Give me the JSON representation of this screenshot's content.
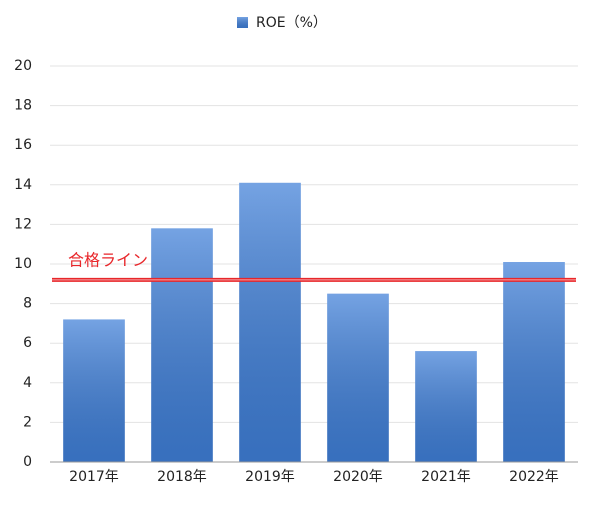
{
  "chart_data": {
    "type": "bar",
    "categories": [
      "2017年",
      "2018年",
      "2019年",
      "2020年",
      "2021年",
      "2022年"
    ],
    "series": [
      {
        "name": "ROE（%）",
        "color": "#3f7fd8",
        "values": [
          7.2,
          11.8,
          14.1,
          8.5,
          5.6,
          10.1
        ]
      }
    ],
    "ylim": [
      0,
      20
    ],
    "yticks": [
      0,
      2,
      4,
      6,
      8,
      10,
      12,
      14,
      16,
      18,
      20
    ],
    "grid": true,
    "legend": "top",
    "reference_line": {
      "value": 9.2,
      "label": "合格ライン",
      "color": "#e8262a"
    }
  }
}
